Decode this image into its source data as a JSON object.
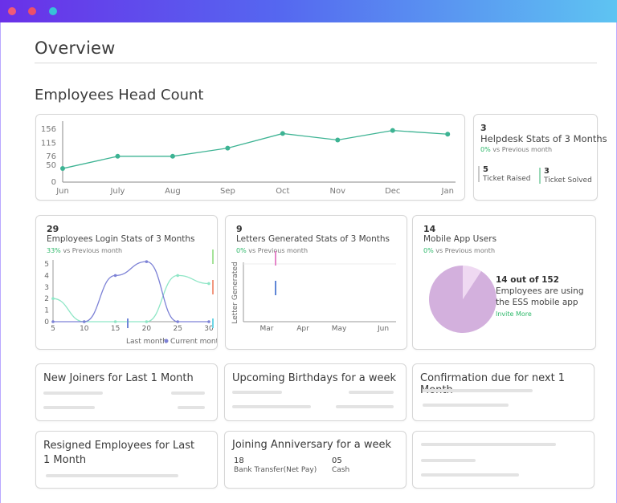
{
  "window": {
    "dots": [
      "#f05a78",
      "#ec4f6a",
      "#37c2d8"
    ]
  },
  "page": {
    "title": "Overview",
    "section_title": "Employees Head Count"
  },
  "headcount_chart": {
    "chart_data": {
      "type": "line",
      "categories": [
        "Jun",
        "July",
        "Aug",
        "Sep",
        "Oct",
        "Nov",
        "Dec",
        "Jan"
      ],
      "values": [
        40,
        76,
        76,
        100,
        143,
        124,
        152,
        141
      ],
      "yticks": [
        0,
        50,
        76,
        115,
        156
      ],
      "ylim": [
        0,
        170
      ],
      "color": "#3db393"
    }
  },
  "helpdesk": {
    "count": "3",
    "title": "Helpdesk Stats of 3 Months",
    "vs_pct": "0%",
    "vs_text": "vs Previous month",
    "raised_value": "5",
    "raised_label": "Ticket Raised",
    "solved_value": "3",
    "solved_label": "Ticket Solved"
  },
  "login_stats": {
    "count": "29",
    "title": "Employees Login Stats of 3 Months",
    "vs_pct": "33%",
    "vs_text": "vs Previous month",
    "legend_last": "Last month",
    "legend_current": "Current month",
    "chart_data": {
      "type": "line",
      "x": [
        5,
        10,
        15,
        20,
        25,
        30
      ],
      "yticks": [
        0,
        1,
        2,
        3,
        4,
        5
      ],
      "ylim": [
        0,
        5.5
      ],
      "series": [
        {
          "name": "Last month",
          "color": "#8fe6c6",
          "x": [
            5,
            10,
            15,
            20,
            25,
            30
          ],
          "y": [
            2,
            0,
            0,
            0,
            4,
            3.3
          ]
        },
        {
          "name": "Current month",
          "color": "#7d82d6",
          "x": [
            5,
            10,
            15,
            20,
            25,
            30
          ],
          "y": [
            0,
            0,
            4,
            5.2,
            0,
            0
          ]
        }
      ]
    }
  },
  "letters": {
    "count": "9",
    "title": "Letters Generated Stats of 3 Months",
    "vs_pct": "0%",
    "vs_text": "vs Previous month",
    "ylabel": "Letter Generated",
    "chart_data": {
      "type": "bar",
      "categories": [
        "Mar",
        "Apr",
        "May",
        "Jun"
      ]
    }
  },
  "mobile": {
    "count": "14",
    "title": "Mobile App Users",
    "vs_pct": "0%",
    "vs_text": "vs Previous month",
    "summary_line1": "14 out of 152",
    "summary_line2": "Employees are using",
    "summary_line3": "the ESS mobile app",
    "invite": "Invite More",
    "chart_data": {
      "type": "pie",
      "slices": [
        {
          "value": 138,
          "color": "#d3b0dd"
        },
        {
          "value": 14,
          "color": "#efd9f2"
        }
      ]
    }
  },
  "bottom": {
    "new_joiners": "New Joiners for Last 1 Month",
    "birthdays": "Upcoming Birthdays for a week",
    "confirmation": "Confirmation due for next 1 Month",
    "resigned": "Resigned Employees for Last 1 Month",
    "anniversary": "Joining Anniversary for a week",
    "bank_value": "18",
    "bank_label": "Bank Transfer(Net Pay)",
    "cash_value": "05",
    "cash_label": "Cash"
  }
}
